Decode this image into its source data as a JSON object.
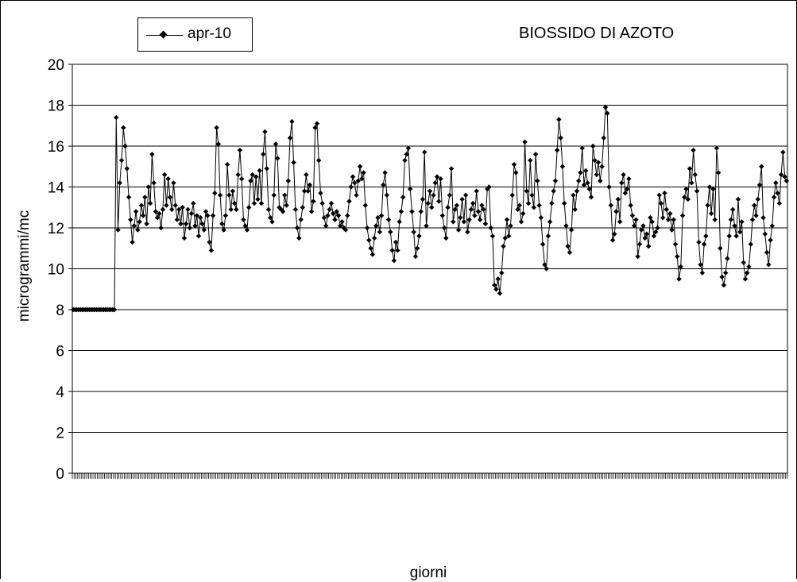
{
  "chart_data": {
    "type": "line",
    "title": "BIOSSIDO DI AZOTO",
    "xlabel": "giorni",
    "ylabel": "microgrammi/mc",
    "ylim": [
      0,
      20
    ],
    "yticks": [
      "0",
      "2",
      "4",
      "6",
      "8",
      "10",
      "12",
      "14",
      "16",
      "18",
      "20"
    ],
    "grid": true,
    "legend_placement": "top-left",
    "series": [
      {
        "name": "apr-10",
        "color": "#000000",
        "marker": "diamond",
        "values": [
          8,
          8,
          8,
          8,
          8,
          8,
          8,
          8,
          8,
          8,
          8,
          8,
          8,
          8,
          8,
          8,
          8,
          8,
          8,
          8,
          8,
          8,
          8,
          8,
          17.4,
          11.9,
          14.2,
          15.3,
          16.9,
          16.0,
          14.9,
          13.5,
          12.4,
          11.3,
          12.1,
          12.8,
          11.9,
          12.3,
          13.1,
          12.6,
          13.5,
          12.2,
          14.0,
          13.2,
          15.6,
          14.2,
          12.8,
          12.5,
          12.7,
          12.0,
          12.9,
          14.6,
          13.1,
          14.4,
          13.5,
          12.9,
          14.2,
          13.1,
          12.4,
          12.9,
          12.2,
          13.0,
          11.5,
          12.2,
          12.9,
          12.0,
          12.7,
          13.2,
          12.1,
          12.6,
          11.6,
          12.5,
          12.2,
          11.9,
          12.8,
          12.6,
          11.3,
          10.9,
          12.6,
          13.7,
          16.9,
          16.1,
          13.6,
          12.2,
          11.9,
          12.6,
          15.1,
          13.6,
          12.9,
          13.8,
          13.2,
          12.9,
          14.6,
          15.8,
          14.4,
          12.4,
          12.1,
          11.9,
          13.0,
          14.3,
          14.6,
          13.2,
          14.5,
          13.4,
          14.8,
          13.2,
          15.6,
          16.7,
          14.9,
          12.9,
          12.5,
          12.3,
          13.6,
          16.1,
          15.4,
          13.0,
          12.9,
          12.8,
          13.6,
          13.1,
          14.3,
          16.4,
          17.2,
          15.2,
          12.9,
          12.0,
          11.5,
          12.4,
          13.0,
          13.8,
          14.6,
          13.8,
          14.1,
          12.8,
          13.3,
          16.9,
          17.1,
          15.3,
          13.7,
          13.2,
          12.5,
          12.1,
          12.6,
          12.9,
          13.2,
          12.7,
          12.4,
          12.8,
          12.6,
          12.1,
          12.3,
          12.0,
          11.9,
          12.6,
          13.3,
          14.0,
          14.5,
          14.2,
          13.6,
          14.3,
          15.0,
          14.4,
          14.7,
          13.1,
          12.0,
          11.4,
          11.0,
          10.7,
          11.5,
          12.1,
          12.5,
          11.8,
          12.6,
          14.1,
          14.7,
          13.6,
          12.4,
          11.8,
          10.9,
          10.4,
          11.3,
          10.9,
          12.3,
          12.8,
          13.5,
          15.3,
          15.6,
          15.9,
          13.9,
          12.8,
          11.8,
          10.6,
          11.0,
          11.6,
          12.8,
          13.4,
          15.7,
          12.1,
          13.2,
          13.8,
          13.0,
          13.6,
          14.2,
          14.5,
          13.3,
          14.4,
          12.6,
          12.0,
          11.5,
          13.0,
          13.6,
          14.9,
          12.3,
          12.9,
          13.1,
          11.9,
          12.5,
          13.4,
          12.3,
          13.6,
          11.8,
          12.4,
          12.9,
          13.2,
          12.6,
          13.8,
          12.8,
          12.4,
          13.1,
          12.9,
          12.2,
          13.9,
          14.0,
          12.0,
          11.6,
          9.2,
          9.0,
          9.5,
          8.8,
          9.8,
          11.1,
          11.5,
          12.4,
          11.6,
          12.1,
          13.6,
          15.1,
          14.7,
          12.9,
          13.1,
          12.3,
          12.7,
          16.2,
          13.8,
          13.2,
          15.3,
          13.6,
          13.0,
          15.6,
          14.3,
          13.1,
          12.5,
          11.2,
          10.2,
          10.0,
          11.6,
          12.3,
          13.2,
          13.8,
          14.3,
          15.8,
          17.3,
          16.4,
          15.0,
          13.2,
          12.1,
          11.1,
          10.8,
          11.9,
          13.6,
          12.9,
          13.8,
          14.3,
          14.7,
          15.9,
          14.1,
          14.8,
          14.2,
          13.9,
          13.5,
          16.0,
          15.3,
          14.6,
          15.2,
          14.3,
          15.0,
          16.4,
          17.9,
          17.6,
          14.0,
          13.1,
          11.4,
          11.7,
          12.8,
          13.4,
          12.3,
          14.2,
          14.6,
          13.7,
          13.9,
          14.4,
          13.1,
          12.6,
          12.1,
          12.4,
          10.6,
          11.2,
          11.9,
          12.1,
          11.5,
          11.7,
          11.1,
          12.5,
          12.3,
          11.6,
          11.8,
          12.0,
          13.6,
          13.2,
          12.5,
          13.7,
          12.9,
          12.4,
          12.7,
          11.9,
          12.4,
          11.2,
          10.6,
          9.5,
          10.1,
          12.6,
          13.5,
          13.9,
          13.4,
          14.9,
          14.2,
          15.8,
          14.6,
          13.8,
          11.3,
          10.2,
          9.8,
          11.2,
          11.6,
          13.1,
          14.0,
          12.7,
          13.9,
          12.4,
          15.9,
          14.7,
          11.0,
          9.6,
          9.2,
          9.8,
          10.5,
          11.6,
          12.4,
          12.9,
          12.1,
          11.6,
          13.4,
          11.8,
          12.3,
          10.3,
          9.5,
          9.8,
          10.1,
          11.2,
          12.4,
          13.1,
          12.6,
          13.4,
          14.1,
          15.0,
          12.5,
          11.7,
          10.8,
          10.2,
          11.4,
          12.1,
          13.5,
          14.2,
          13.7,
          13.2,
          14.6,
          15.7,
          14.5,
          14.3
        ]
      }
    ]
  }
}
